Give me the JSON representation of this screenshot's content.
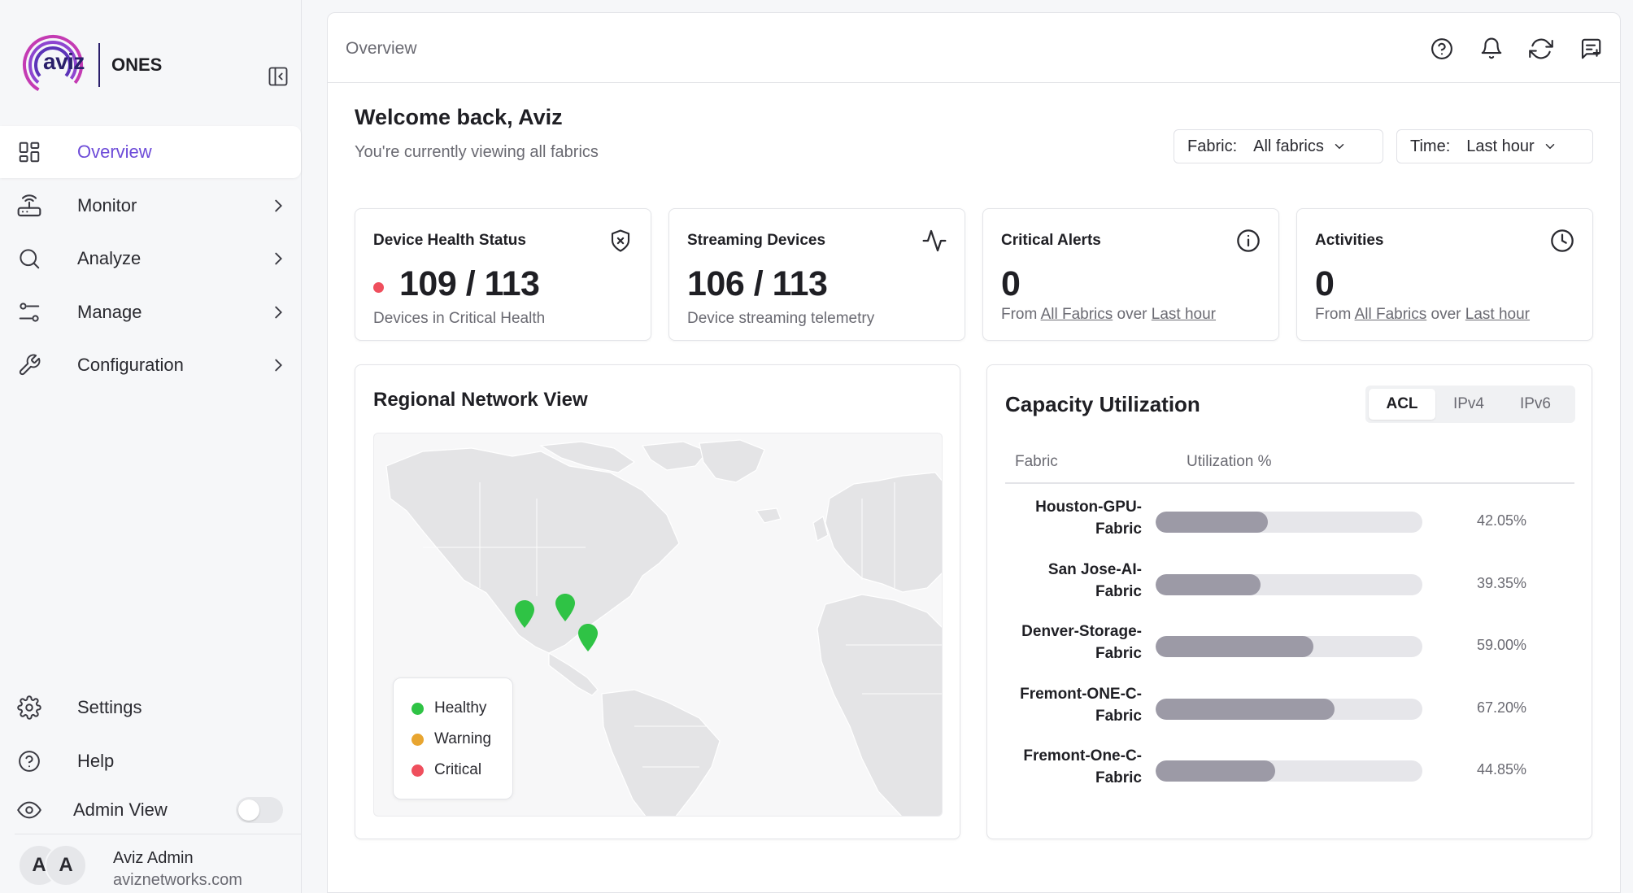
{
  "brand": {
    "logo_word": "aviz",
    "product": "ONES"
  },
  "sidebar": {
    "items": [
      {
        "label": "Overview",
        "icon": "grid-icon",
        "active": true
      },
      {
        "label": "Monitor",
        "icon": "router-icon"
      },
      {
        "label": "Analyze",
        "icon": "search-icon"
      },
      {
        "label": "Manage",
        "icon": "sliders-icon"
      },
      {
        "label": "Configuration",
        "icon": "wrench-icon"
      }
    ],
    "bottom_items": [
      {
        "label": "Settings",
        "icon": "gear-icon"
      },
      {
        "label": "Help",
        "icon": "help-circle-icon"
      }
    ],
    "admin_view_label": "Admin View",
    "admin_view_enabled": false,
    "user": {
      "initials": [
        "A",
        "A"
      ],
      "name": "Aviz Admin",
      "email": "aviznetworks.com"
    }
  },
  "topbar": {
    "breadcrumb": "Overview",
    "icons": [
      "help-circle-icon",
      "bell-icon",
      "refresh-icon",
      "message-plus-icon"
    ]
  },
  "welcome": {
    "title": "Welcome back, Aviz",
    "subtitle": "You're currently viewing all fabrics"
  },
  "filters": {
    "fabric": {
      "label": "Fabric:",
      "value": "All fabrics"
    },
    "time": {
      "label": "Time:",
      "value": "Last hour"
    }
  },
  "stats": [
    {
      "title": "Device Health Status",
      "value": "109 / 113",
      "footer": "Devices in Critical Health",
      "icon": "shield-x-icon",
      "status_color": "#ef4f5d"
    },
    {
      "title": "Streaming Devices",
      "value": "106 / 113",
      "footer": "Device streaming telemetry",
      "icon": "activity-icon"
    },
    {
      "title": "Critical Alerts",
      "value": "0",
      "footer_prefix": "From",
      "footer_link1": "All Fabrics",
      "footer_mid": "over",
      "footer_link2": "Last hour",
      "icon": "info-circle-icon"
    },
    {
      "title": "Activities",
      "value": "0",
      "footer_prefix": "From",
      "footer_link1": "All Fabrics",
      "footer_mid": "over",
      "footer_link2": "Last hour",
      "icon": "clock-icon"
    }
  ],
  "map": {
    "title": "Regional Network View",
    "legend": [
      {
        "label": "Healthy",
        "color": "#2fc345"
      },
      {
        "label": "Warning",
        "color": "#e8a530"
      },
      {
        "label": "Critical",
        "color": "#ef4f5d"
      }
    ],
    "markers": [
      {
        "status": "healthy"
      },
      {
        "status": "healthy"
      },
      {
        "status": "healthy"
      }
    ]
  },
  "capacity": {
    "title": "Capacity Utilization",
    "tabs": [
      "ACL",
      "IPv4",
      "IPv6"
    ],
    "active_tab": "ACL",
    "columns": [
      "Fabric",
      "Utilization %"
    ],
    "rows": [
      {
        "name": "Houston-GPU-Fabric",
        "line1": "Houston-GPU-",
        "line2": "Fabric",
        "value": 42.05,
        "label": "42.05%"
      },
      {
        "name": "San Jose-AI-Fabric",
        "line1": "San Jose-AI-",
        "line2": "Fabric",
        "value": 39.35,
        "label": "39.35%"
      },
      {
        "name": "Denver-Storage-Fabric",
        "line1": "Denver-Storage-",
        "line2": "Fabric",
        "value": 59.0,
        "label": "59.00%"
      },
      {
        "name": "Fremont-ONE-C-Fabric",
        "line1": "Fremont-ONE-C-",
        "line2": "Fabric",
        "value": 67.2,
        "label": "67.20%"
      },
      {
        "name": "Fremont-One-C-Fabric",
        "line1": "Fremont-One-C-",
        "line2": "Fabric",
        "value": 44.85,
        "label": "44.85%"
      }
    ]
  },
  "colors": {
    "accent": "#6d4bd8",
    "bar_fill": "#9c9aa6",
    "bar_track": "#e6e6ea"
  }
}
